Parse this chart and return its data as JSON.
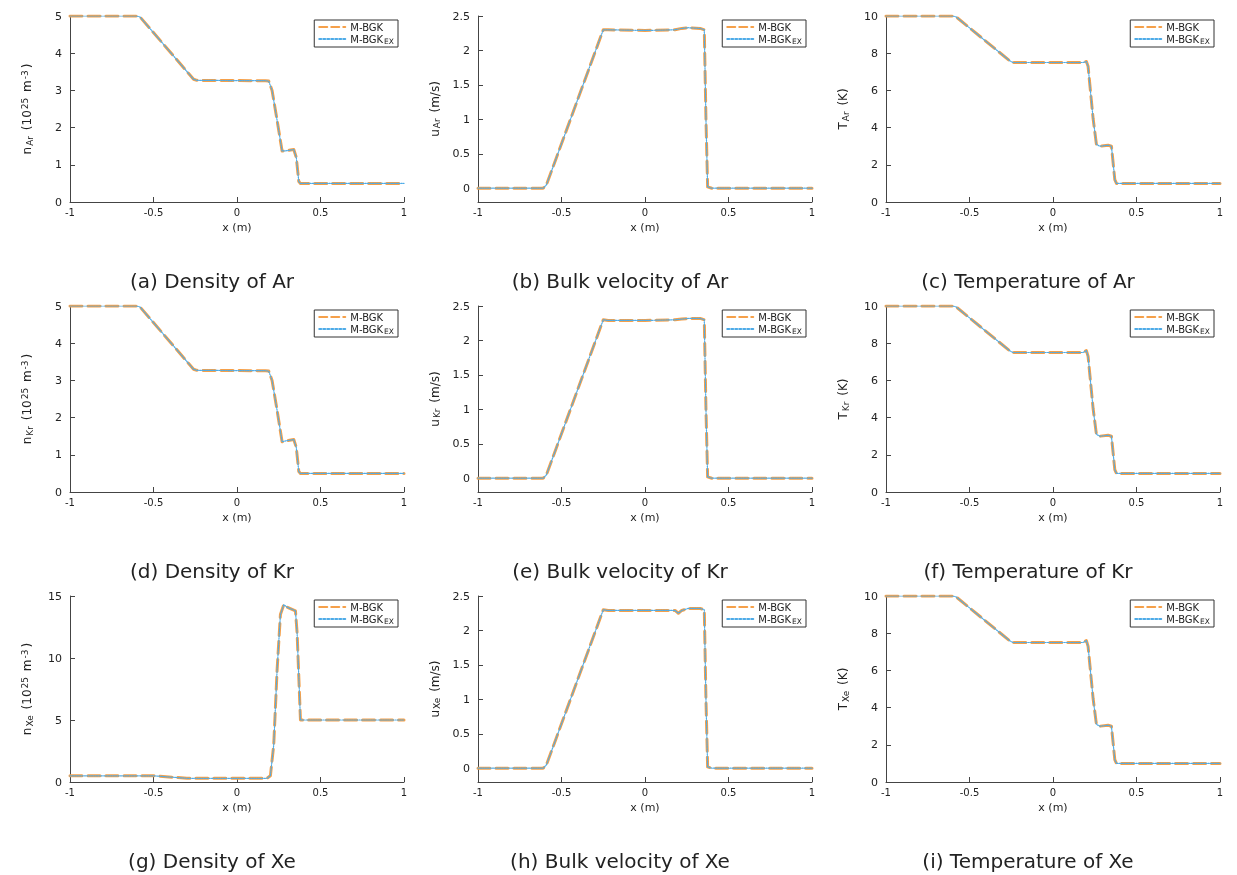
{
  "chart_data": [
    {
      "type": "line",
      "title": "(a) Density of Ar",
      "xlabel": "x (m)",
      "ylabel": "n$_{Ar}$ (10$^{25}$ m$^{-3}$)",
      "xlim": [
        -1,
        1
      ],
      "xticks": [
        -1,
        -0.5,
        0,
        0.5,
        1
      ],
      "ylim": [
        0,
        5
      ],
      "yticks": [
        0,
        1,
        2,
        3,
        4,
        5
      ],
      "legend": "top right",
      "grid": false,
      "marker": "none",
      "x": [
        -1,
        -0.6,
        -0.58,
        -0.26,
        -0.24,
        0.17,
        0.19,
        0.21,
        0.24,
        0.27,
        0.3,
        0.34,
        0.355,
        0.37,
        0.38,
        0.5,
        1
      ],
      "series": [
        {
          "name": "M-BGK",
          "color": "#f5a04a",
          "line_style": "dashed",
          "values": [
            5,
            5,
            4.97,
            3.3,
            3.27,
            3.26,
            3.25,
            3.0,
            2.2,
            1.37,
            1.38,
            1.41,
            1.2,
            0.55,
            0.5,
            0.5,
            0.5
          ]
        },
        {
          "name": "M-BGK$_{EX}$",
          "color": "#4dabe8",
          "line_style": "dotted",
          "values": [
            5,
            5,
            4.97,
            3.3,
            3.27,
            3.26,
            3.25,
            3.0,
            2.2,
            1.37,
            1.38,
            1.41,
            1.2,
            0.55,
            0.5,
            0.5,
            0.5
          ]
        }
      ]
    },
    {
      "type": "line",
      "title": "(b) Bulk velocity of Ar",
      "xlabel": "x (m)",
      "ylabel": "u$_{Ar}$ (m/s)",
      "xlim": [
        -1,
        1
      ],
      "xticks": [
        -1,
        -0.5,
        0,
        0.5,
        1
      ],
      "ylim": [
        -0.2,
        2.5
      ],
      "yticks": [
        0,
        0.5,
        1,
        1.5,
        2,
        2.5
      ],
      "legend": "top right",
      "grid": false,
      "marker": "none",
      "x": [
        -1,
        -0.61,
        -0.59,
        -0.25,
        -0.22,
        0,
        0.18,
        0.22,
        0.26,
        0.33,
        0.355,
        0.365,
        0.375,
        0.4,
        1
      ],
      "series": [
        {
          "name": "M-BGK",
          "color": "#f5a04a",
          "line_style": "dashed",
          "values": [
            0,
            0,
            0.05,
            2.3,
            2.3,
            2.29,
            2.3,
            2.32,
            2.33,
            2.32,
            2.3,
            1.0,
            0.02,
            0,
            0
          ]
        },
        {
          "name": "M-BGK$_{EX}$",
          "color": "#4dabe8",
          "line_style": "dotted",
          "values": [
            0,
            0,
            0.05,
            2.3,
            2.3,
            2.29,
            2.3,
            2.32,
            2.33,
            2.32,
            2.3,
            1.0,
            0.02,
            0,
            0
          ]
        }
      ]
    },
    {
      "type": "line",
      "title": "(c) Temperature of Ar",
      "xlabel": "x (m)",
      "ylabel": "T$_{Ar}$ (K)",
      "xlim": [
        -1,
        1
      ],
      "xticks": [
        -1,
        -0.5,
        0,
        0.5,
        1
      ],
      "ylim": [
        0,
        10
      ],
      "yticks": [
        0,
        2,
        4,
        6,
        8,
        10
      ],
      "legend": "top right",
      "grid": false,
      "marker": "none",
      "x": [
        -1,
        -0.6,
        -0.58,
        -0.26,
        -0.24,
        0.18,
        0.2,
        0.21,
        0.24,
        0.26,
        0.28,
        0.33,
        0.35,
        0.37,
        0.38,
        0.5,
        1
      ],
      "series": [
        {
          "name": "M-BGK",
          "color": "#f5a04a",
          "line_style": "dashed",
          "values": [
            10,
            10,
            9.95,
            7.6,
            7.5,
            7.5,
            7.55,
            7.3,
            4.5,
            3.1,
            3.0,
            3.05,
            3.0,
            1.2,
            1.0,
            1.0,
            1.0
          ]
        },
        {
          "name": "M-BGK$_{EX}$",
          "color": "#4dabe8",
          "line_style": "dotted",
          "values": [
            10,
            10,
            9.95,
            7.6,
            7.5,
            7.5,
            7.55,
            7.3,
            4.5,
            3.1,
            3.0,
            3.05,
            3.0,
            1.2,
            1.0,
            1.0,
            1.0
          ]
        }
      ]
    },
    {
      "type": "line",
      "title": "(d) Density of Kr",
      "xlabel": "x (m)",
      "ylabel": "n$_{Kr}$ (10$^{25}$ m$^{-3}$)",
      "xlim": [
        -1,
        1
      ],
      "xticks": [
        -1,
        -0.5,
        0,
        0.5,
        1
      ],
      "ylim": [
        0,
        5
      ],
      "yticks": [
        0,
        1,
        2,
        3,
        4,
        5
      ],
      "legend": "top right",
      "grid": false,
      "marker": "none",
      "x": [
        -1,
        -0.6,
        -0.58,
        -0.26,
        -0.24,
        0.17,
        0.19,
        0.21,
        0.24,
        0.27,
        0.3,
        0.34,
        0.355,
        0.37,
        0.38,
        0.5,
        1
      ],
      "series": [
        {
          "name": "M-BGK",
          "color": "#f5a04a",
          "line_style": "dashed",
          "values": [
            5,
            5,
            4.97,
            3.3,
            3.27,
            3.26,
            3.25,
            3.0,
            2.2,
            1.35,
            1.38,
            1.41,
            1.2,
            0.55,
            0.5,
            0.5,
            0.5
          ]
        },
        {
          "name": "M-BGK$_{EX}$",
          "color": "#4dabe8",
          "line_style": "dotted",
          "values": [
            5,
            5,
            4.97,
            3.3,
            3.27,
            3.26,
            3.25,
            3.0,
            2.2,
            1.35,
            1.38,
            1.41,
            1.2,
            0.55,
            0.5,
            0.5,
            0.5
          ]
        }
      ]
    },
    {
      "type": "line",
      "title": "(e) Bulk velocity of Kr",
      "xlabel": "x (m)",
      "ylabel": "u$_{Kr}$ (m/s)",
      "xlim": [
        -1,
        1
      ],
      "xticks": [
        -1,
        -0.5,
        0,
        0.5,
        1
      ],
      "ylim": [
        -0.2,
        2.5
      ],
      "yticks": [
        0,
        0.5,
        1,
        1.5,
        2,
        2.5
      ],
      "legend": "top right",
      "grid": false,
      "marker": "none",
      "x": [
        -1,
        -0.61,
        -0.59,
        -0.25,
        -0.22,
        0,
        0.18,
        0.22,
        0.26,
        0.33,
        0.355,
        0.365,
        0.375,
        0.4,
        1
      ],
      "series": [
        {
          "name": "M-BGK",
          "color": "#f5a04a",
          "line_style": "dashed",
          "values": [
            0,
            0,
            0.05,
            2.3,
            2.29,
            2.29,
            2.3,
            2.31,
            2.32,
            2.32,
            2.3,
            1.0,
            0.02,
            0,
            0
          ]
        },
        {
          "name": "M-BGK$_{EX}$",
          "color": "#4dabe8",
          "line_style": "dotted",
          "values": [
            0,
            0,
            0.05,
            2.3,
            2.29,
            2.29,
            2.3,
            2.31,
            2.32,
            2.32,
            2.3,
            1.0,
            0.02,
            0,
            0
          ]
        }
      ]
    },
    {
      "type": "line",
      "title": "(f) Temperature of Kr",
      "xlabel": "x (m)",
      "ylabel": "T$_{Kr}$ (K)",
      "xlim": [
        -1,
        1
      ],
      "xticks": [
        -1,
        -0.5,
        0,
        0.5,
        1
      ],
      "ylim": [
        0,
        10
      ],
      "yticks": [
        0,
        2,
        4,
        6,
        8,
        10
      ],
      "legend": "top right",
      "grid": false,
      "marker": "none",
      "x": [
        -1,
        -0.6,
        -0.58,
        -0.26,
        -0.24,
        0.18,
        0.2,
        0.21,
        0.24,
        0.26,
        0.28,
        0.33,
        0.35,
        0.37,
        0.38,
        0.5,
        1
      ],
      "series": [
        {
          "name": "M-BGK",
          "color": "#f5a04a",
          "line_style": "dashed",
          "values": [
            10,
            10,
            9.95,
            7.6,
            7.5,
            7.5,
            7.6,
            7.3,
            4.5,
            3.1,
            3.0,
            3.05,
            3.0,
            1.2,
            1.0,
            1.0,
            1.0
          ]
        },
        {
          "name": "M-BGK$_{EX}$",
          "color": "#4dabe8",
          "line_style": "dotted",
          "values": [
            10,
            10,
            9.95,
            7.6,
            7.5,
            7.5,
            7.6,
            7.3,
            4.5,
            3.1,
            3.0,
            3.05,
            3.0,
            1.2,
            1.0,
            1.0,
            1.0
          ]
        }
      ]
    },
    {
      "type": "line",
      "title": "(g) Density of Xe",
      "xlabel": "x (m)",
      "ylabel": "n$_{Xe}$ (10$^{25}$ m$^{-3}$)",
      "xlim": [
        -1,
        1
      ],
      "xticks": [
        -1,
        -0.5,
        0,
        0.5,
        1
      ],
      "ylim": [
        0,
        15
      ],
      "yticks": [
        0,
        5,
        10,
        15
      ],
      "legend": "top right",
      "grid": false,
      "marker": "none",
      "x": [
        -1,
        -0.5,
        -0.3,
        0.18,
        0.2,
        0.22,
        0.24,
        0.26,
        0.28,
        0.3,
        0.35,
        0.36,
        0.38,
        0.5,
        1
      ],
      "series": [
        {
          "name": "M-BGK",
          "color": "#f5a04a",
          "line_style": "dashed",
          "values": [
            0.5,
            0.5,
            0.3,
            0.3,
            0.5,
            3,
            9,
            13.5,
            14.3,
            14.1,
            13.8,
            12,
            5,
            5,
            5
          ]
        },
        {
          "name": "M-BGK$_{EX}$",
          "color": "#4dabe8",
          "line_style": "dotted",
          "values": [
            0.5,
            0.5,
            0.3,
            0.3,
            0.5,
            3,
            9,
            13.5,
            14.3,
            14.1,
            13.8,
            12,
            5,
            5,
            5
          ]
        }
      ]
    },
    {
      "type": "line",
      "title": "(h) Bulk velocity of Xe",
      "xlabel": "x (m)",
      "ylabel": "u$_{Xe}$ (m/s)",
      "xlim": [
        -1,
        1
      ],
      "xticks": [
        -1,
        -0.5,
        0,
        0.5,
        1
      ],
      "ylim": [
        -0.2,
        2.5
      ],
      "yticks": [
        0,
        0.5,
        1,
        1.5,
        2,
        2.5
      ],
      "legend": "top right",
      "grid": false,
      "marker": "none",
      "x": [
        -1,
        -0.61,
        -0.59,
        -0.25,
        -0.22,
        0,
        0.18,
        0.2,
        0.22,
        0.26,
        0.33,
        0.355,
        0.365,
        0.375,
        0.4,
        1
      ],
      "series": [
        {
          "name": "M-BGK",
          "color": "#f5a04a",
          "line_style": "dashed",
          "values": [
            0,
            0,
            0.05,
            2.3,
            2.29,
            2.29,
            2.29,
            2.25,
            2.29,
            2.32,
            2.32,
            2.3,
            1.0,
            0.02,
            0,
            0
          ]
        },
        {
          "name": "M-BGK$_{EX}$",
          "color": "#4dabe8",
          "line_style": "dotted",
          "values": [
            0,
            0,
            0.05,
            2.3,
            2.29,
            2.29,
            2.29,
            2.25,
            2.29,
            2.32,
            2.32,
            2.3,
            1.0,
            0.02,
            0,
            0
          ]
        }
      ]
    },
    {
      "type": "line",
      "title": "(i) Temperature of Xe",
      "xlabel": "x (m)",
      "ylabel": "T$_{Xe}$ (K)",
      "xlim": [
        -1,
        1
      ],
      "xticks": [
        -1,
        -0.5,
        0,
        0.5,
        1
      ],
      "ylim": [
        0,
        10
      ],
      "yticks": [
        0,
        2,
        4,
        6,
        8,
        10
      ],
      "legend": "top right",
      "grid": false,
      "marker": "none",
      "x": [
        -1,
        -0.6,
        -0.58,
        -0.26,
        -0.24,
        0.18,
        0.2,
        0.21,
        0.24,
        0.26,
        0.28,
        0.33,
        0.35,
        0.37,
        0.38,
        0.5,
        1
      ],
      "series": [
        {
          "name": "M-BGK",
          "color": "#f5a04a",
          "line_style": "dashed",
          "values": [
            10,
            10,
            9.95,
            7.6,
            7.5,
            7.5,
            7.6,
            7.3,
            4.5,
            3.1,
            3.0,
            3.05,
            3.0,
            1.2,
            1.0,
            1.0,
            1.0
          ]
        },
        {
          "name": "M-BGK$_{EX}$",
          "color": "#4dabe8",
          "line_style": "dotted",
          "values": [
            10,
            10,
            9.95,
            7.6,
            7.5,
            7.5,
            7.6,
            7.3,
            4.5,
            3.1,
            3.0,
            3.05,
            3.0,
            1.2,
            1.0,
            1.0,
            1.0
          ]
        }
      ]
    }
  ]
}
